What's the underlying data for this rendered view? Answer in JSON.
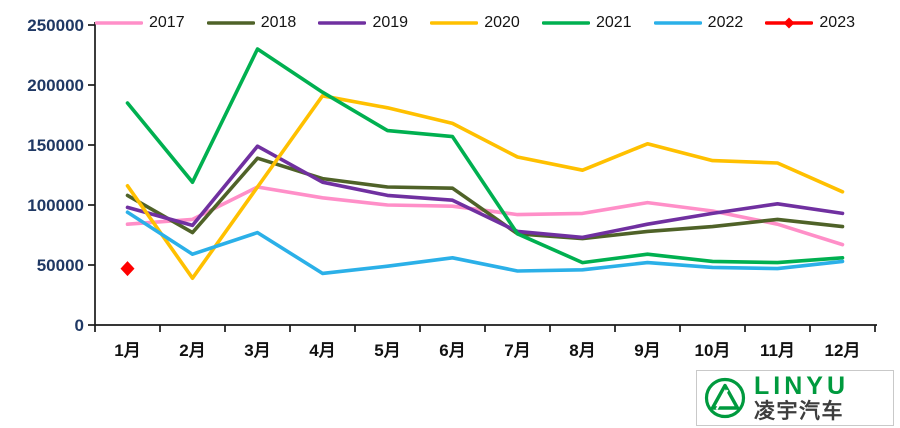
{
  "chart_data": {
    "type": "line",
    "title": "",
    "xlabel": "",
    "ylabel": "",
    "categories": [
      "1月",
      "2月",
      "3月",
      "4月",
      "5月",
      "6月",
      "7月",
      "8月",
      "9月",
      "10月",
      "11月",
      "12月"
    ],
    "ylim": [
      0,
      250000
    ],
    "yticks": [
      0,
      50000,
      100000,
      150000,
      200000,
      250000
    ],
    "grid": false,
    "legend_position": "top",
    "series": [
      {
        "name": "2017",
        "color": "#ff8fc8",
        "marker": "none",
        "values": [
          84000,
          88000,
          115000,
          106000,
          100000,
          99000,
          92000,
          93000,
          102000,
          95000,
          84000,
          67000
        ]
      },
      {
        "name": "2018",
        "color": "#4f6228",
        "marker": "none",
        "values": [
          108000,
          77000,
          139000,
          122000,
          115000,
          114000,
          76000,
          72000,
          78000,
          82000,
          88000,
          82000
        ]
      },
      {
        "name": "2019",
        "color": "#7030a0",
        "marker": "none",
        "values": [
          98000,
          83000,
          149000,
          119000,
          108000,
          104000,
          78000,
          73000,
          84000,
          93000,
          101000,
          93000
        ]
      },
      {
        "name": "2020",
        "color": "#ffc000",
        "marker": "none",
        "values": [
          116000,
          39000,
          115000,
          191000,
          181000,
          168000,
          140000,
          129000,
          151000,
          137000,
          135000,
          111000
        ]
      },
      {
        "name": "2021",
        "color": "#00b050",
        "marker": "none",
        "values": [
          185000,
          119000,
          230000,
          194000,
          162000,
          157000,
          76000,
          52000,
          59000,
          53000,
          52000,
          56000
        ]
      },
      {
        "name": "2022",
        "color": "#2bb0e8",
        "marker": "none",
        "values": [
          94000,
          59000,
          77000,
          43000,
          49000,
          56000,
          45000,
          46000,
          52000,
          48000,
          47000,
          53000
        ]
      },
      {
        "name": "2023",
        "color": "#ff0000",
        "marker": "diamond",
        "values": [
          47000,
          null,
          null,
          null,
          null,
          null,
          null,
          null,
          null,
          null,
          null,
          null
        ]
      }
    ]
  },
  "logo": {
    "brand_en": "LINYU",
    "brand_cn": "凌宇汽车",
    "green": "#009a3e",
    "dark": "#3d3d3d"
  }
}
